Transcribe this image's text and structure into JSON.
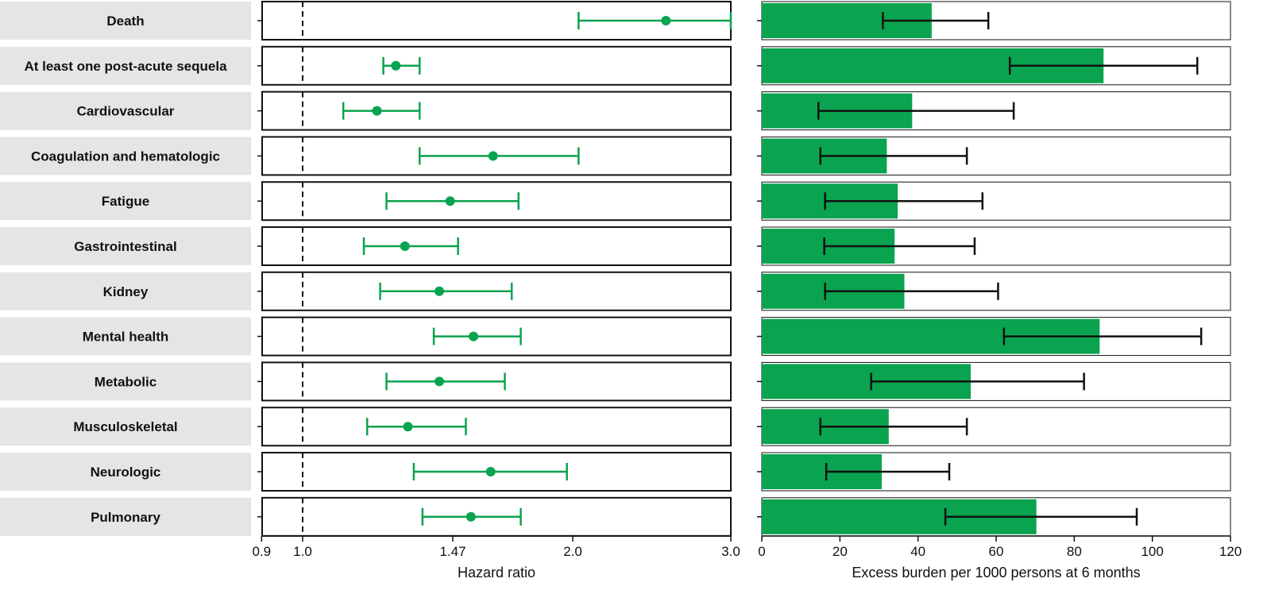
{
  "colors": {
    "accent": "#0aa34f",
    "label_bg": "#e5e5e5",
    "panel_border": "#111111",
    "error_bar": "#111111"
  },
  "chart_data": [
    {
      "type": "scatter",
      "subtype": "forest-plot",
      "xlabel": "Hazard ratio",
      "xscale": "log",
      "xlim": [
        0.9,
        3.0
      ],
      "xticks": [
        0.9,
        1.0,
        1.47,
        2.0,
        3.0
      ],
      "xtick_labels": [
        "0.9",
        "1.0",
        "1.47",
        "2.0",
        "3.0"
      ],
      "reference_line": 1.0,
      "categories": [
        "Death",
        "At least one post-acute sequela",
        "Cardiovascular",
        "Coagulation and hematologic",
        "Fatigue",
        "Gastrointestinal",
        "Kidney",
        "Mental health",
        "Metabolic",
        "Musculoskeletal",
        "Neurologic",
        "Pulmonary"
      ],
      "estimate": [
        2.54,
        1.27,
        1.21,
        1.63,
        1.46,
        1.3,
        1.42,
        1.55,
        1.42,
        1.31,
        1.62,
        1.54
      ],
      "lower": [
        2.03,
        1.23,
        1.11,
        1.35,
        1.24,
        1.17,
        1.22,
        1.4,
        1.24,
        1.18,
        1.33,
        1.36
      ],
      "upper": [
        3.0,
        1.35,
        1.35,
        2.03,
        1.74,
        1.49,
        1.71,
        1.75,
        1.68,
        1.52,
        1.97,
        1.75
      ],
      "grid": false
    },
    {
      "type": "bar",
      "orientation": "horizontal",
      "xlabel": "Excess burden per 1000 persons at 6 months",
      "xlim": [
        0,
        120
      ],
      "xticks": [
        0,
        20,
        40,
        60,
        80,
        100,
        120
      ],
      "categories": [
        "Death",
        "At least one post-acute sequela",
        "Cardiovascular",
        "Coagulation and hematologic",
        "Fatigue",
        "Gastrointestinal",
        "Kidney",
        "Mental health",
        "Metabolic",
        "Musculoskeletal",
        "Neurologic",
        "Pulmonary"
      ],
      "values": [
        43.5,
        87.5,
        38.5,
        32.0,
        34.8,
        34.0,
        36.5,
        86.5,
        53.5,
        32.5,
        30.7,
        70.3
      ],
      "lower": [
        31.0,
        63.5,
        14.5,
        15.0,
        16.2,
        16.0,
        16.2,
        62.0,
        28.0,
        15.0,
        16.5,
        47.0
      ],
      "upper": [
        58.0,
        111.5,
        64.5,
        52.5,
        56.5,
        54.5,
        60.5,
        112.5,
        82.5,
        52.5,
        48.0,
        96.0
      ],
      "grid": false
    }
  ]
}
